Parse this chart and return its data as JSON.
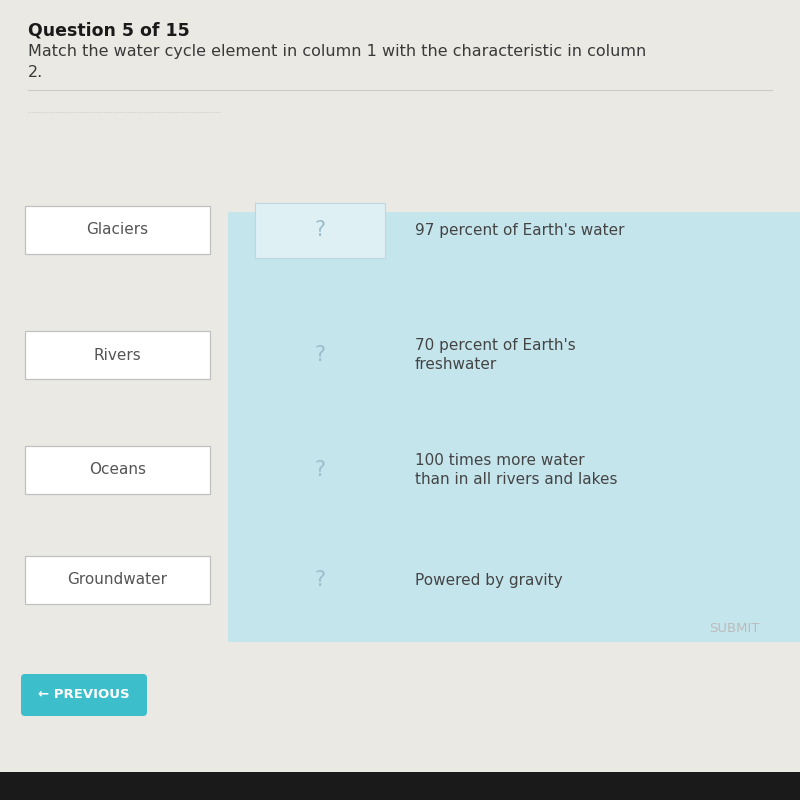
{
  "background_color": "#ebe9e4",
  "question_number": "Question 5 of 15",
  "question_text": "Match the water cycle element in column 1 with the characteristic in column\n2.",
  "col1_items": [
    "Glaciers",
    "Rivers",
    "Oceans",
    "Groundwater"
  ],
  "col2_items": [
    "97 percent of Earth's water",
    "70 percent of Earth's\nfreshwater",
    "100 times more water\nthan in all rivers and lakes",
    "Powered by gravity"
  ],
  "box_bg": "#ffffff",
  "box_border": "#c0c0c0",
  "middle_bg": "#c5e5ed",
  "middle_box_bg": "#dff0f5",
  "question_color": "#3a3a3a",
  "question_number_color": "#1a1a1a",
  "item_color": "#555555",
  "col2_color": "#444444",
  "question_mark_color": "#9bbfcc",
  "submit_color": "#bbbbbb",
  "prev_bg": "#3cbecb",
  "prev_text": "← PREVIOUS",
  "submit_text": "SUBMIT",
  "separator_color": "#cccccc",
  "bottom_bar_color": "#1a1a1a"
}
